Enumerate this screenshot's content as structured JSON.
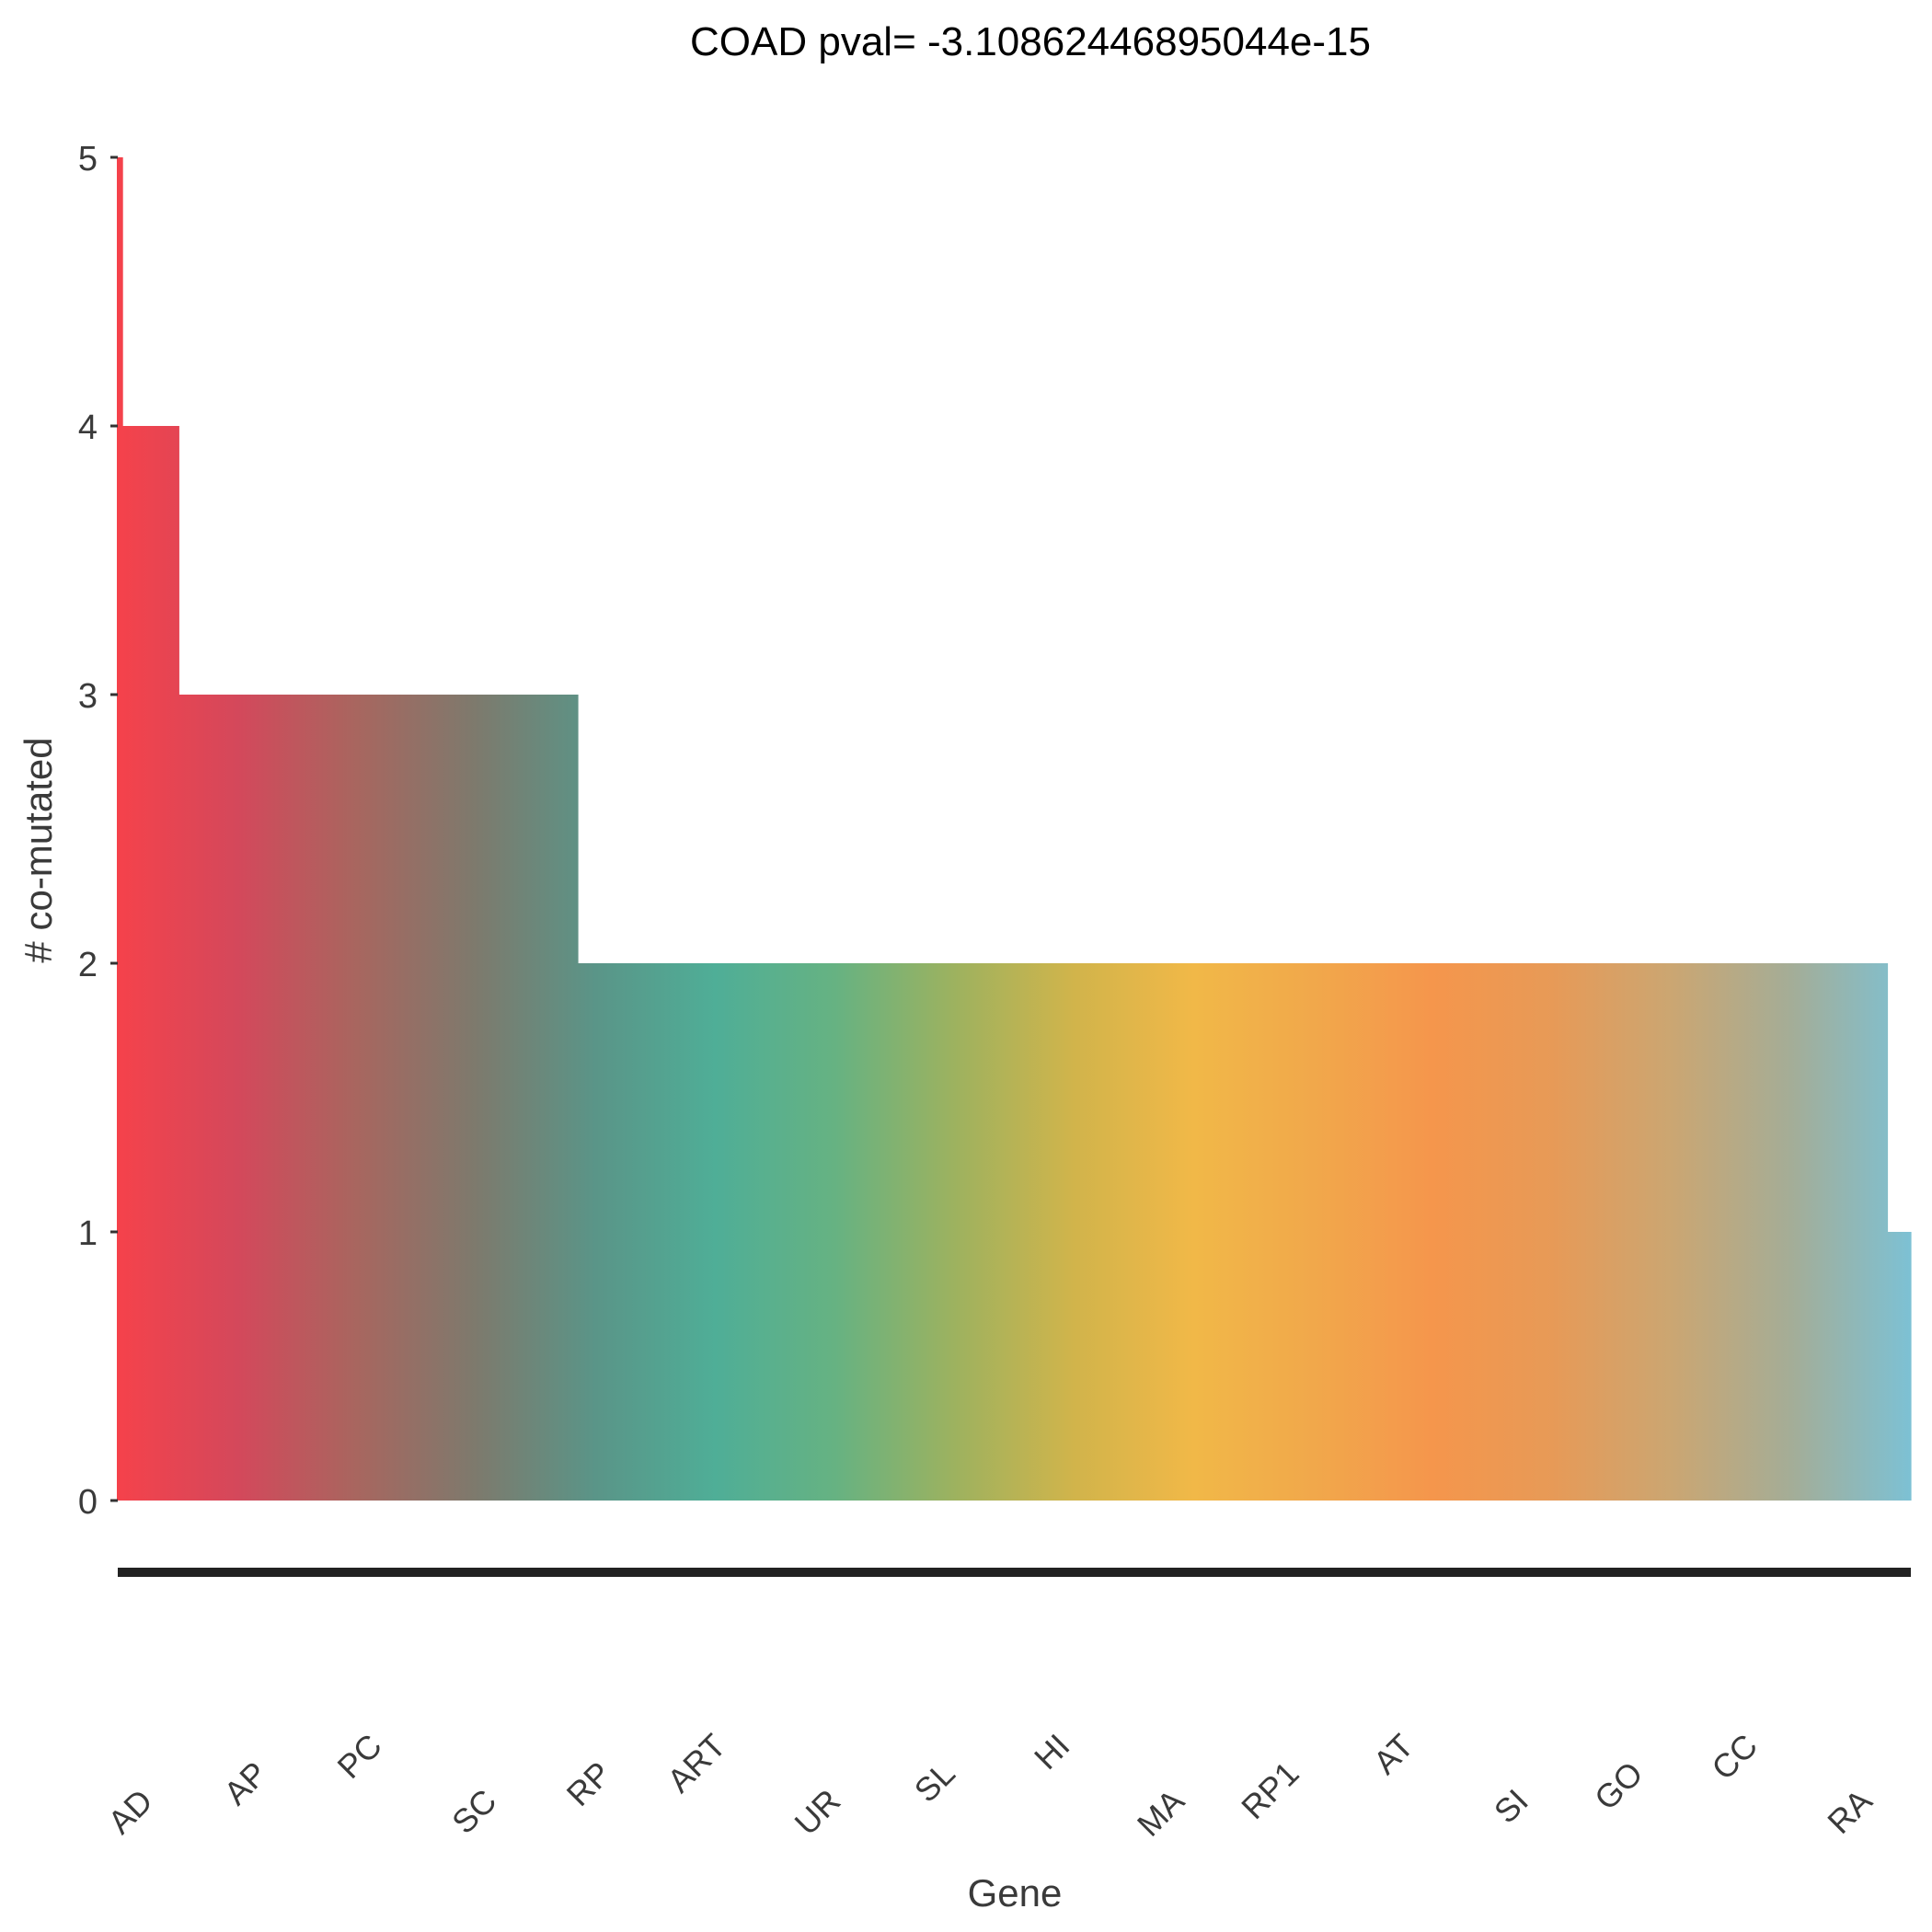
{
  "chart_data": {
    "type": "bar",
    "title": "COAD pval= -3.10862446895044e-15",
    "xlabel": "Gene",
    "ylabel": "# co-mutated",
    "ylim": [
      0,
      5
    ],
    "yticks": [
      0,
      1,
      2,
      3,
      4,
      5
    ],
    "grid": false,
    "legend": "none",
    "visible_category_labels": [
      "AD",
      "AP",
      "PC",
      "SC",
      "RP",
      "ART",
      "UR",
      "SL",
      "HI",
      "MA",
      "RP1",
      "AT",
      "SI",
      "GO",
      "CC",
      "RA"
    ],
    "segments": [
      {
        "count": 1,
        "value": 5
      },
      {
        "count": 12,
        "value": 4
      },
      {
        "count": 85,
        "value": 3
      },
      {
        "count": 279,
        "value": 2
      },
      {
        "count": 5,
        "value": 1
      }
    ],
    "gradient_colors": [
      "#f5424b",
      "#d4485b",
      "#a8665f",
      "#7d7a6d",
      "#5a9588",
      "#4fae97",
      "#66b282",
      "#9db25f",
      "#d1b44b",
      "#f1b848",
      "#f1a84b",
      "#f5964c",
      "#e79a57",
      "#cba672",
      "#a4ad97",
      "#7dc1d4"
    ]
  }
}
